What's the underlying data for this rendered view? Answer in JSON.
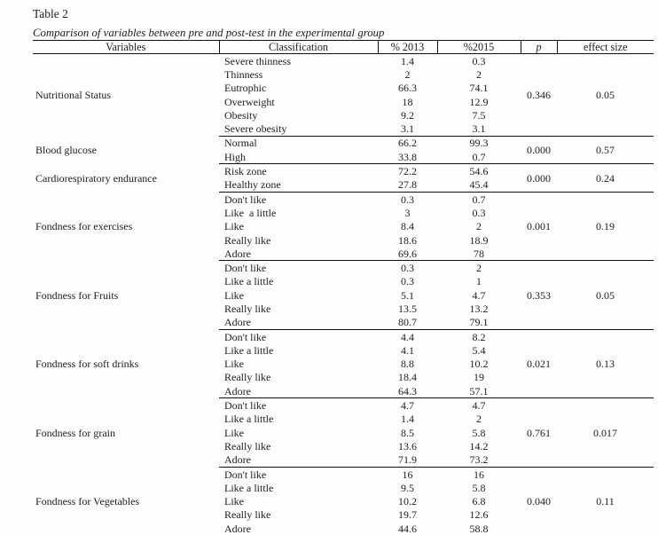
{
  "title": "Table 2",
  "caption": "Comparison of variables between pre and post-test in the experimental group",
  "columns": {
    "variables": "Variables",
    "classification": "Classification",
    "y2013": "% 2013",
    "y2015": "%2015",
    "p": "p",
    "effect_size": "effect size"
  },
  "sections": [
    {
      "name": "Nutritional Status",
      "p": "0.346",
      "es": "0.05",
      "rows": [
        {
          "label": "Severe thinness",
          "y2013": "1.4",
          "y2015": "0.3"
        },
        {
          "label": "Thinness",
          "y2013": "2",
          "y2015": "2"
        },
        {
          "label": "Eutrophic",
          "y2013": "66.3",
          "y2015": "74.1"
        },
        {
          "label": "Overweight",
          "y2013": "18",
          "y2015": "12.9"
        },
        {
          "label": "Obesity",
          "y2013": "9.2",
          "y2015": "7.5"
        },
        {
          "label": "Severe obesity",
          "y2013": "3.1",
          "y2015": "3.1"
        }
      ]
    },
    {
      "name": "Blood glucose",
      "p": "0.000",
      "es": "0.57",
      "rows": [
        {
          "label": "Normal",
          "y2013": "66.2",
          "y2015": "99.3"
        },
        {
          "label": "High",
          "y2013": "33.8",
          "y2015": "0.7"
        }
      ]
    },
    {
      "name": "Cardiorespiratory endurance",
      "p": "0.000",
      "es": "0.24",
      "rows": [
        {
          "label": "Risk zone",
          "y2013": "72.2",
          "y2015": "54.6"
        },
        {
          "label": "Healthy zone",
          "y2013": "27.8",
          "y2015": "45.4"
        }
      ]
    },
    {
      "name": "Fondness for exercises",
      "p": "0.001",
      "es": "0.19",
      "rows": [
        {
          "label": "Don't like",
          "y2013": "0.3",
          "y2015": "0.7"
        },
        {
          "label": "Like  a little",
          "y2013": "3",
          "y2015": "0.3"
        },
        {
          "label": "Like",
          "y2013": "8.4",
          "y2015": "2"
        },
        {
          "label": "Really like",
          "y2013": "18.6",
          "y2015": "18.9"
        },
        {
          "label": "Adore",
          "y2013": "69.6",
          "y2015": "78"
        }
      ]
    },
    {
      "name": "Fondness for Fruits",
      "p": "0.353",
      "es": "0.05",
      "rows": [
        {
          "label": "Don't like",
          "y2013": "0.3",
          "y2015": "2"
        },
        {
          "label": "Like a little",
          "y2013": "0.3",
          "y2015": "1"
        },
        {
          "label": "Like",
          "y2013": "5.1",
          "y2015": "4.7"
        },
        {
          "label": "Really like",
          "y2013": "13.5",
          "y2015": "13.2"
        },
        {
          "label": "Adore",
          "y2013": "80.7",
          "y2015": "79.1"
        }
      ]
    },
    {
      "name": "Fondness for soft drinks",
      "p": "0.021",
      "es": "0.13",
      "rows": [
        {
          "label": "Don't like",
          "y2013": "4.4",
          "y2015": "8.2"
        },
        {
          "label": "Like a little",
          "y2013": "4.1",
          "y2015": "5.4"
        },
        {
          "label": "Like",
          "y2013": "8.8",
          "y2015": "10.2"
        },
        {
          "label": "Really like",
          "y2013": "18.4",
          "y2015": "19"
        },
        {
          "label": "Adore",
          "y2013": "64.3",
          "y2015": "57.1"
        }
      ]
    },
    {
      "name": "Fondness for grain",
      "p": "0.761",
      "es": "0.017",
      "rows": [
        {
          "label": "Don't like",
          "y2013": "4.7",
          "y2015": "4.7"
        },
        {
          "label": "Like a little",
          "y2013": "1.4",
          "y2015": "2"
        },
        {
          "label": "Like",
          "y2013": "8.5",
          "y2015": "5.8"
        },
        {
          "label": "Really like",
          "y2013": "13.6",
          "y2015": "14.2"
        },
        {
          "label": "Adore",
          "y2013": "71.9",
          "y2015": "73.2"
        }
      ]
    },
    {
      "name": "Fondness for Vegetables",
      "p": "0.040",
      "es": "0.11",
      "rows": [
        {
          "label": "Don't like",
          "y2013": "16",
          "y2015": "16"
        },
        {
          "label": "Like a little",
          "y2013": "9.5",
          "y2015": "5.8"
        },
        {
          "label": "Like",
          "y2013": "10.2",
          "y2015": "6.8"
        },
        {
          "label": "Really like",
          "y2013": "19.7",
          "y2015": "12.6"
        },
        {
          "label": "Adore",
          "y2013": "44.6",
          "y2015": "58.8"
        }
      ]
    }
  ]
}
